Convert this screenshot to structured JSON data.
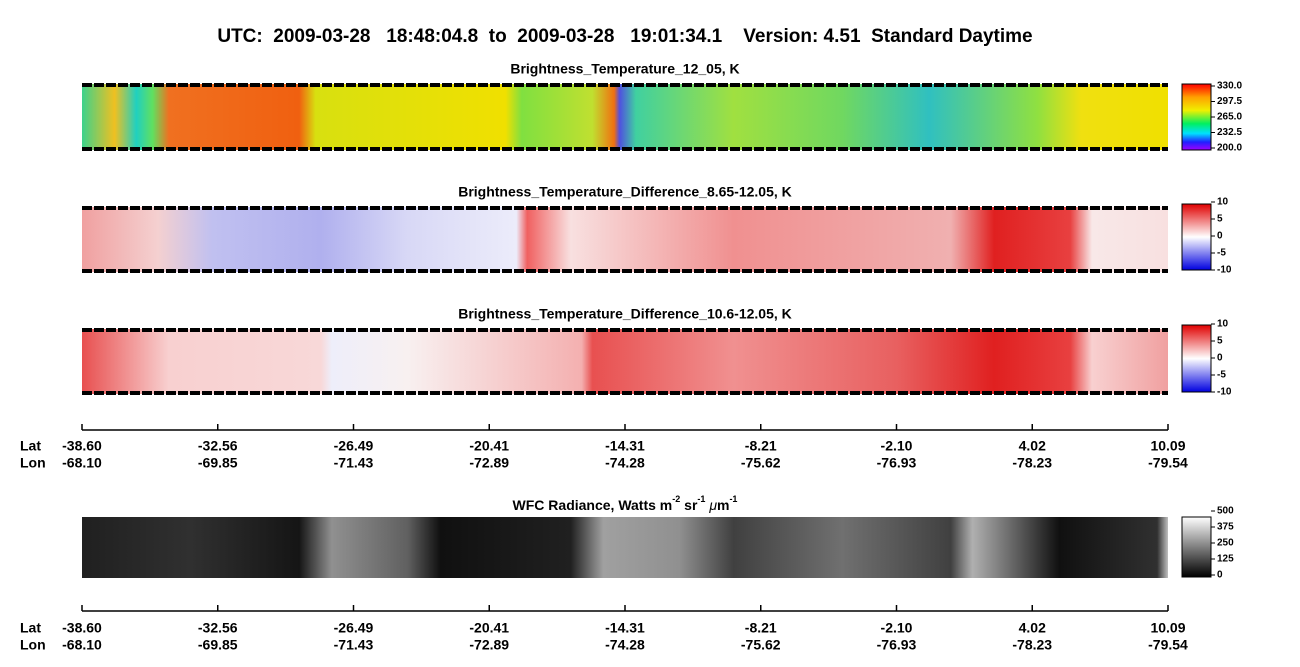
{
  "header": {
    "title": "UTC:  2009-03-28   18:48:04.8  to  2009-03-28   19:01:34.1    Version: 4.51  Standard Daytime"
  },
  "panels": [
    {
      "title": "Brightness_Temperature_12_05, K",
      "colorbar": [
        "330.0",
        "297.5",
        "265.0",
        "232.5",
        "200.0"
      ]
    },
    {
      "title": "Brightness_Temperature_Difference_8.65-12.05, K",
      "colorbar": [
        "10",
        "5",
        "0",
        "-5",
        "-10"
      ]
    },
    {
      "title": "Brightness_Temperature_Difference_10.6-12.05, K",
      "colorbar": [
        "10",
        "5",
        "0",
        "-5",
        "-10"
      ]
    },
    {
      "title": [
        "WFC Radiance, Watts m",
        "-2",
        " sr",
        "-1",
        " ",
        "μ",
        "m",
        "-1"
      ],
      "colorbar": [
        "500",
        "375",
        "250",
        "125",
        "0"
      ]
    }
  ],
  "axis": {
    "lat_label": "Lat",
    "lon_label": "Lon",
    "lat": [
      "-38.60",
      "-32.56",
      "-26.49",
      "-20.41",
      "-14.31",
      "-8.21",
      "-2.10",
      "4.02",
      "10.09"
    ],
    "lon": [
      "-68.10",
      "-69.85",
      "-71.43",
      "-72.89",
      "-74.28",
      "-75.62",
      "-76.93",
      "-78.23",
      "-79.54"
    ]
  }
}
